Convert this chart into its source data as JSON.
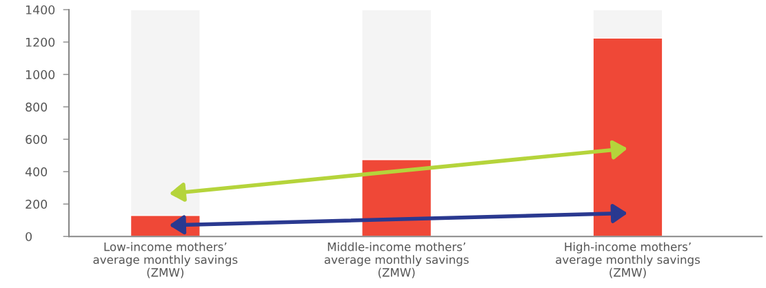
{
  "chart_data": {
    "type": "bar",
    "categories": [
      "Low-income mothers’\naverage monthly savings\n(ZMW)",
      "Middle-income mothers’\naverage monthly savings\n(ZMW)",
      "High-income mothers’\naverage monthly savings\n(ZMW)"
    ],
    "series": [
      {
        "color": "#ef4837",
        "values": [
          130,
          475,
          1225
        ]
      },
      {
        "color": "#f4f4f4",
        "values": [
          1270,
          925,
          175
        ]
      }
    ],
    "stacked": true,
    "ylim": [
      0,
      1400
    ],
    "yticks": [
      0,
      200,
      400,
      600,
      800,
      1000,
      1200,
      1400
    ],
    "grid": false,
    "legend": false
  }
}
